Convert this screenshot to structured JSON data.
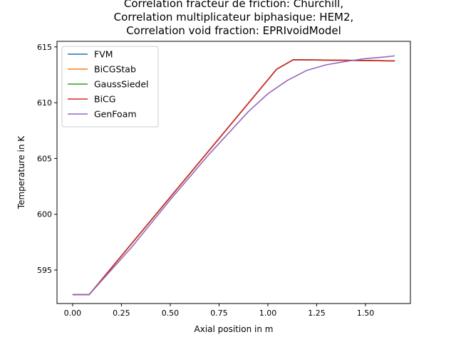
{
  "chart_data": {
    "type": "line",
    "title_lines": [
      "Correlation fracteur de friction: Churchill,",
      "Correlation multiplicateur biphasique: HEM2,",
      "Correlation void fraction: EPRIvoidModel"
    ],
    "xlabel": "Axial position in m",
    "ylabel": "Temperature in K",
    "xlim": [
      -0.08,
      1.73
    ],
    "ylim": [
      592.0,
      615.5
    ],
    "xticks": [
      {
        "value": 0.0,
        "label": "0.00"
      },
      {
        "value": 0.25,
        "label": "0.25"
      },
      {
        "value": 0.5,
        "label": "0.50"
      },
      {
        "value": 0.75,
        "label": "0.75"
      },
      {
        "value": 1.0,
        "label": "1.00"
      },
      {
        "value": 1.25,
        "label": "1.25"
      },
      {
        "value": 1.5,
        "label": "1.50"
      }
    ],
    "yticks": [
      {
        "value": 595,
        "label": "595"
      },
      {
        "value": 600,
        "label": "600"
      },
      {
        "value": 605,
        "label": "605"
      },
      {
        "value": 610,
        "label": "610"
      },
      {
        "value": 615,
        "label": "615"
      }
    ],
    "grid": false,
    "legend_position": "top-left",
    "series": [
      {
        "name": "FVM",
        "color": "#1f77b4",
        "x": [
          0.0,
          0.085,
          1.045,
          1.13,
          1.65
        ],
        "y": [
          592.8,
          592.8,
          613.0,
          613.85,
          613.75
        ]
      },
      {
        "name": "BiCGStab",
        "color": "#ff7f0e",
        "x": [
          0.0,
          0.085,
          1.045,
          1.13,
          1.65
        ],
        "y": [
          592.8,
          592.8,
          613.0,
          613.85,
          613.75
        ]
      },
      {
        "name": "GaussSiedel",
        "color": "#2ca02c",
        "x": [
          0.0,
          0.085,
          1.045,
          1.13,
          1.65
        ],
        "y": [
          592.8,
          592.8,
          613.0,
          613.85,
          613.75
        ]
      },
      {
        "name": "BiCG",
        "color": "#d62728",
        "x": [
          0.0,
          0.085,
          1.045,
          1.13,
          1.65
        ],
        "y": [
          592.8,
          592.8,
          613.0,
          613.85,
          613.75
        ]
      },
      {
        "name": "GenFoam",
        "color": "#9467bd",
        "x": [
          0.0,
          0.085,
          0.3,
          0.5,
          0.7,
          0.9,
          1.0,
          1.1,
          1.2,
          1.3,
          1.4,
          1.5,
          1.6,
          1.65
        ],
        "y": [
          592.8,
          592.8,
          597.0,
          601.3,
          605.4,
          609.2,
          610.8,
          612.0,
          612.9,
          613.4,
          613.7,
          613.95,
          614.1,
          614.2
        ]
      }
    ]
  }
}
